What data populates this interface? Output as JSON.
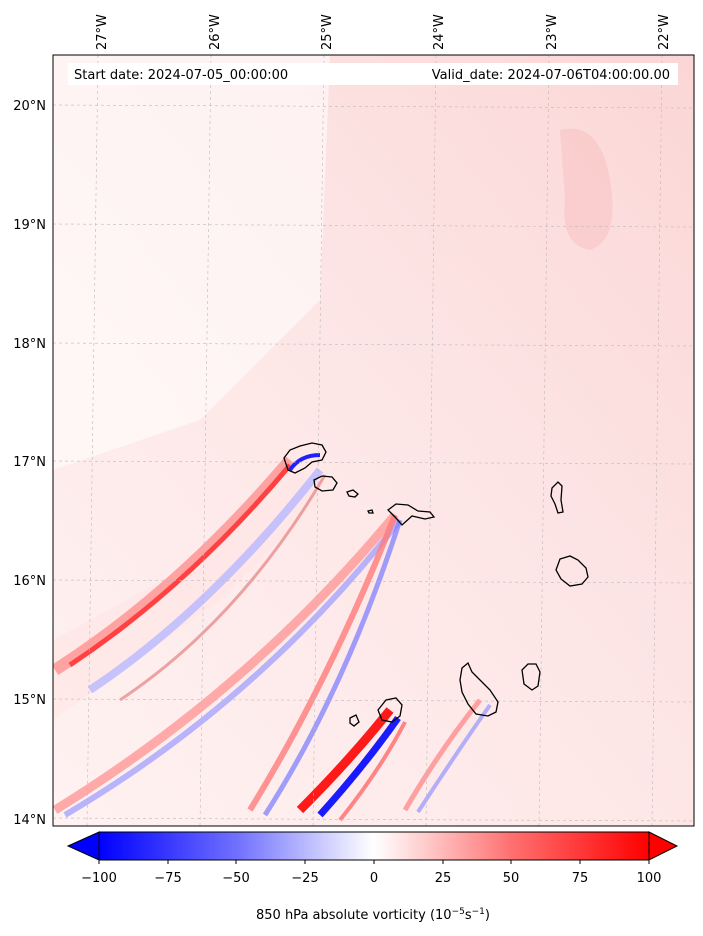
{
  "header": {
    "start_label": "Start date: 2024-07-05_00:00:00",
    "valid_label": "Valid_date: 2024-07-06T04:00:00.00"
  },
  "longitude_ticks": [
    "27°W",
    "26°W",
    "25°W",
    "24°W",
    "23°W",
    "22°W"
  ],
  "latitude_ticks": [
    "20°N",
    "19°N",
    "18°N",
    "17°N",
    "16°N",
    "15°N",
    "14°N"
  ],
  "colorbar": {
    "tick_labels": [
      "−100",
      "−75",
      "−50",
      "−25",
      "0",
      "25",
      "50",
      "75",
      "100"
    ],
    "label": "850 hPa absolute vorticity (10",
    "label_exp1": "−5",
    "label_mid": "s",
    "label_exp2": "−1",
    "label_end": ")",
    "range": [
      -100,
      100
    ],
    "colors": {
      "negative": "#0000ff",
      "zero": "#ffffff",
      "positive": "#ff0000"
    }
  },
  "map": {
    "background_tint": "#fdecec",
    "island_outline": "#000000"
  }
}
